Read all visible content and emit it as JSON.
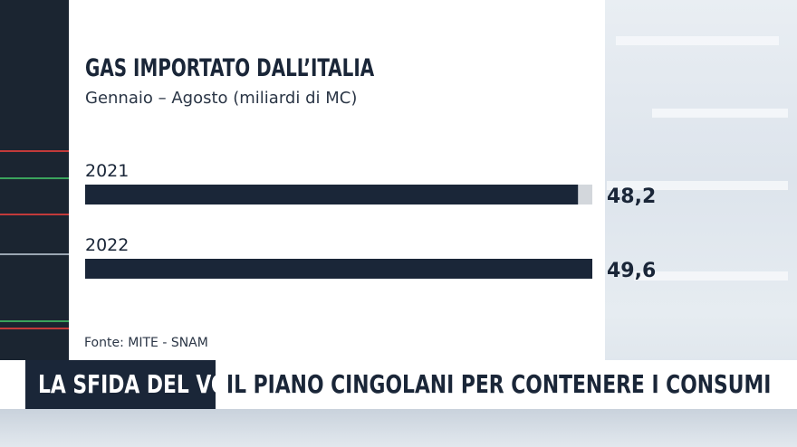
{
  "chart_data": {
    "type": "bar",
    "orientation": "horizontal",
    "title": "GAS IMPORTATO DALL’ITALIA",
    "subtitle": "Gennaio – Agosto  (miliardi di MC)",
    "categories": [
      "2021",
      "2022"
    ],
    "values": [
      48.2,
      49.6
    ],
    "value_labels": [
      "48,2",
      "49,6"
    ],
    "xlim": [
      0,
      49.6
    ],
    "grid": false,
    "colors": {
      "bar": "#1a2638",
      "ghost": "#d3d7dc"
    }
  },
  "source": "Fonte:  MITE - SNAM",
  "ticker": {
    "program": "LA SFIDA DEL VOTO",
    "headline": "IL PIANO CINGOLANI PER CONTENERE I CONSUMI"
  }
}
